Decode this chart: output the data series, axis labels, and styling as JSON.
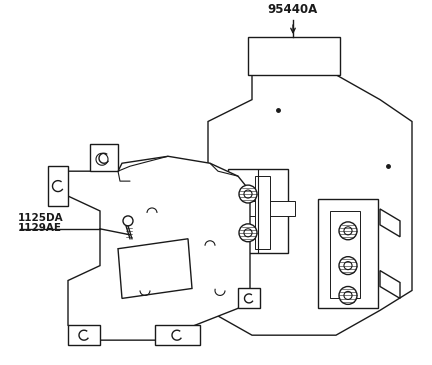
{
  "bg_color": "#ffffff",
  "lc": "#1a1a1a",
  "lw": 1.0,
  "fill_board": "#ffffff",
  "fill_bracket": "#ffffff",
  "label_95440A": "95440A",
  "label_1125DA": "1125DA",
  "label_1129AE": "1129AE",
  "label_fontsize": 7.5,
  "bold_fontsize": 8.5
}
